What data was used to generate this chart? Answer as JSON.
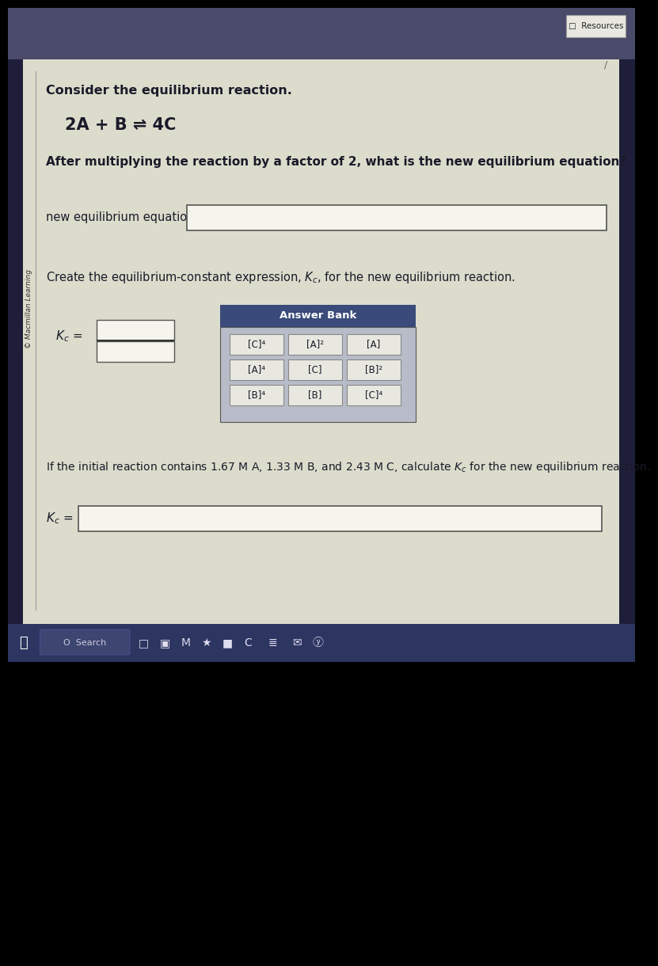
{
  "bg_outer": "#1e1e3a",
  "bg_top": "#3d3d5c",
  "bg_main": "#dcdccc",
  "title_bar_color": "#3a4a7a",
  "answer_bank_header": "#3a4a7a",
  "answer_bank_bg": "#b8bcc8",
  "cell_bg": "#e8e8e0",
  "cell_border": "#888888",
  "taskbar_bg": "#2d3561",
  "text_dark": "#1a1a2a",
  "input_box_bg": "#f5f5ed",
  "input_box_border": "#555555",
  "resources_bg": "#e8e8e0",
  "resources_border": "#999999",
  "black": "#000000",
  "white": "#ffffff",
  "sidebar_label": "Macmillan Learning",
  "reaction_text": "2A + B ⇌ 4C",
  "question1": "Consider the equilibrium reaction.",
  "question2": "After multiplying the reaction by a factor of 2, what is the new equilibrium equation?",
  "label_new_eq": "new equilibrium equation:",
  "label_create": "Create the equilibrium-constant expression, K_c, for the new equilibrium reaction.",
  "answer_bank_title": "Answer Bank",
  "answer_bank_items": [
    [
      "[C]^4",
      "[A]^2",
      "[A]"
    ],
    [
      "[A]^4",
      "[C]",
      "[B]^2"
    ],
    [
      "[B]^4",
      "[B]",
      "[C]^4"
    ]
  ],
  "answer_bank_display": [
    [
      "[C]⁴",
      "[A]²",
      "[A]"
    ],
    [
      "[A]⁴",
      "[C]",
      "[B]²"
    ],
    [
      "[B]⁴",
      "[B]",
      "[C]⁴"
    ]
  ],
  "calc_text": "If the initial reaction contains 1.67 M A, 1.33 M B, and 2.43 M C, calculate K_c for the new equilibrium reaction.",
  "resources_text": "Resources"
}
